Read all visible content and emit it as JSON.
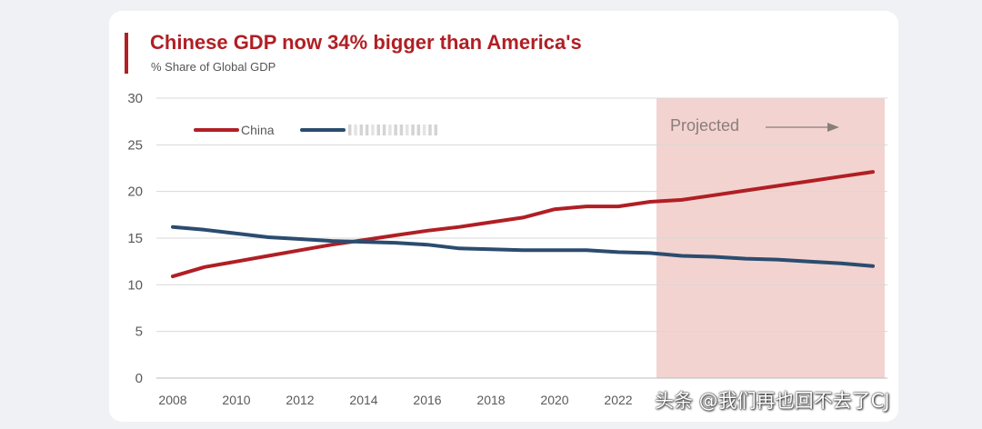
{
  "chart_data": {
    "type": "line",
    "title": "Chinese GDP now 34% bigger than America's",
    "subtitle": "% Share of Global GDP",
    "xlabel": "",
    "ylabel": "",
    "x": [
      2008,
      2009,
      2010,
      2011,
      2012,
      2013,
      2014,
      2015,
      2016,
      2017,
      2018,
      2019,
      2020,
      2021,
      2022,
      2023,
      2024,
      2025,
      2026,
      2027,
      2028,
      2029,
      2030
    ],
    "xticks": [
      2008,
      2010,
      2012,
      2014,
      2016,
      2018,
      2020,
      2022
    ],
    "xlim": [
      2008,
      2030
    ],
    "ylim": [
      0,
      30
    ],
    "yticks": [
      0,
      5,
      10,
      15,
      20,
      25,
      30
    ],
    "grid": true,
    "legend_position": "top-left",
    "series": [
      {
        "name": "China",
        "color": "#b01f24",
        "values": [
          10.9,
          11.9,
          12.5,
          13.1,
          13.7,
          14.3,
          14.8,
          15.3,
          15.8,
          16.2,
          16.7,
          17.2,
          18.1,
          18.4,
          18.4,
          18.9,
          19.1,
          19.6,
          20.1,
          20.6,
          21.1,
          21.6,
          22.1
        ]
      },
      {
        "name": "",
        "color": "#2b4c6f",
        "values": [
          16.2,
          15.9,
          15.5,
          15.1,
          14.9,
          14.7,
          14.6,
          14.5,
          14.3,
          13.9,
          13.8,
          13.7,
          13.7,
          13.7,
          13.5,
          13.4,
          13.1,
          13.0,
          12.8,
          12.7,
          12.5,
          12.3,
          12.0
        ]
      }
    ],
    "projection": {
      "label": "Projected",
      "from_year": 2023.2,
      "to_year": 2030.2,
      "color": "#f3d3d0"
    }
  },
  "watermark": "头条 @我们再也回不去了CJ"
}
